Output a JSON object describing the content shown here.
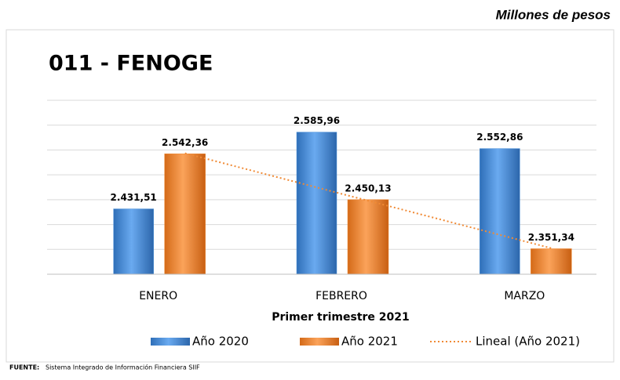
{
  "chart_data": {
    "type": "bar",
    "unit_note": "Millones de pesos",
    "title": "011 - FENOGE",
    "x_label": "Primer trimestre 2021",
    "categories": [
      "ENERO",
      "FEBRERO",
      "MARZO"
    ],
    "series": [
      {
        "name": "Año 2020",
        "color": "#4a8fd8",
        "values": [
          2431.51,
          2585.96,
          2552.86
        ],
        "value_labels": [
          "2.431,51",
          "2.585,96",
          "2.552,86"
        ]
      },
      {
        "name": "Año 2021",
        "color": "#f08a35",
        "values": [
          2542.36,
          2450.13,
          2351.34
        ],
        "value_labels": [
          "2.542,36",
          "2.450,13",
          "2.351,34"
        ]
      }
    ],
    "trendline": {
      "name": "Lineal (Año 2021)",
      "color": "#f08a35",
      "series": 1
    },
    "ylim": [
      2300,
      2650
    ],
    "yticks": [
      2300,
      2350,
      2400,
      2450,
      2500,
      2550,
      2600,
      2650
    ],
    "grid": true,
    "source": {
      "label": "FUENTE:",
      "text": "Sistema Integrado de Información Financiera SIIF"
    }
  }
}
